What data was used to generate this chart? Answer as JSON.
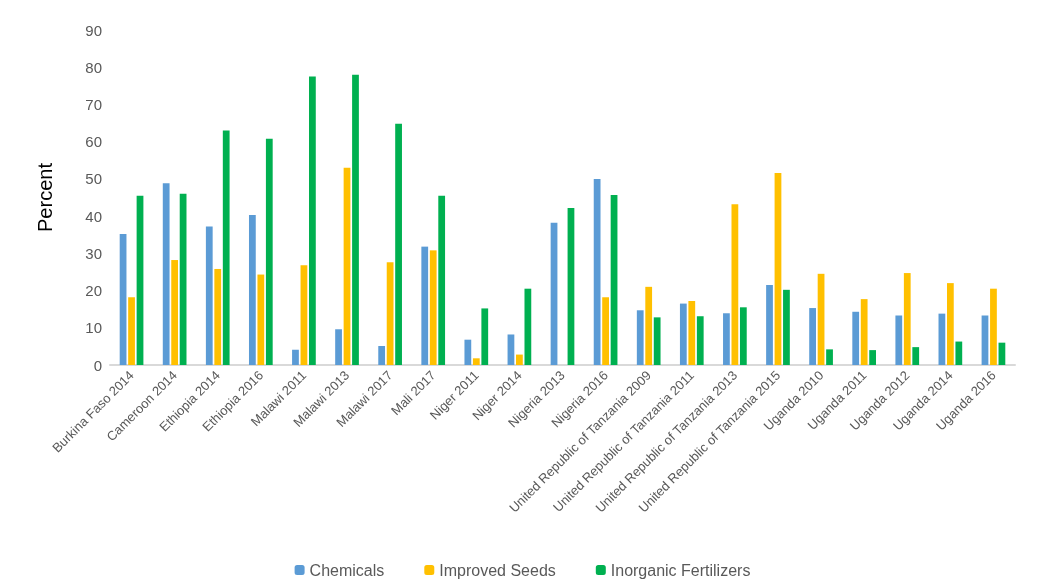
{
  "chart_data": {
    "type": "bar",
    "ylabel": "Percent",
    "categories": [
      "Burkina Faso 2014",
      "Cameroon 2014",
      "Ethiopia 2014",
      "Ethiopia 2016",
      "Malawi 2011",
      "Malawi 2013",
      "Malawi 2017",
      "Mali 2017",
      "Niger 2011",
      "Niger 2014",
      "Nigeria 2013",
      "Nigeria 2016",
      "United Republic of Tanzania 2009",
      "United Republic of Tanzania 2011",
      "United Republic of Tanzania 2013",
      "United Republic of Tanzania 2015",
      "Uganda 2010",
      "Uganda 2011",
      "Uganda 2012",
      "Uganda 2014",
      "Uganda 2016"
    ],
    "series": [
      {
        "name": "Chemicals",
        "color": "#5b9bd5",
        "values": [
          35.2,
          48.8,
          37.2,
          40.3,
          4.1,
          9.6,
          5.1,
          31.8,
          6.8,
          8.2,
          38.2,
          50,
          14.7,
          16.5,
          13.9,
          21.5,
          15.3,
          14.3,
          13.3,
          13.8,
          13.3
        ]
      },
      {
        "name": "Improved Seeds",
        "color": "#ffc000",
        "values": [
          18.2,
          28.2,
          25.8,
          24.3,
          26.8,
          53,
          27.6,
          30.8,
          1.8,
          2.8,
          null,
          18.2,
          21,
          17.2,
          43.2,
          51.6,
          24.5,
          17.7,
          24.7,
          22,
          20.5
        ]
      },
      {
        "name": "Inorganic Fertilizers",
        "color": "#00b050",
        "values": [
          45.5,
          46,
          63,
          60.8,
          77.5,
          78,
          64.8,
          45.5,
          15.2,
          20.5,
          42.2,
          45.7,
          12.8,
          13.1,
          15.5,
          20.2,
          4.2,
          4.0,
          4.8,
          6.3,
          6.0
        ]
      }
    ],
    "ylim": [
      0,
      90
    ],
    "yticks": [
      0,
      10,
      20,
      30,
      40,
      50,
      60,
      70,
      80,
      90
    ],
    "grid": false,
    "legend": "bottom"
  }
}
